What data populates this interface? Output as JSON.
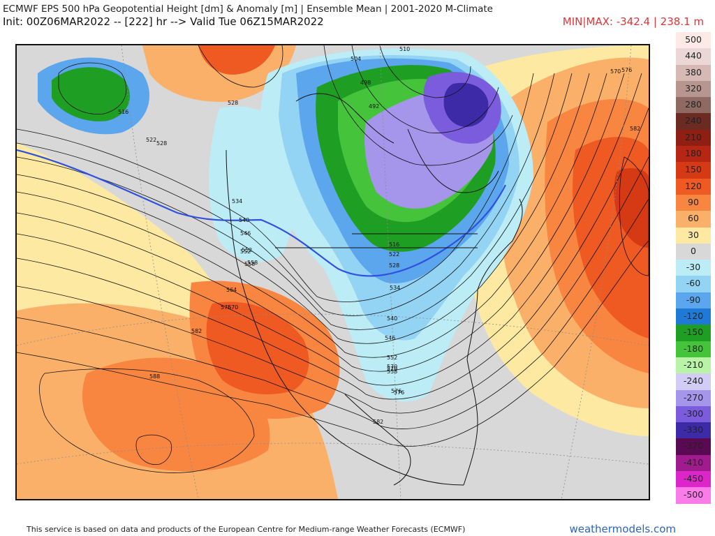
{
  "header": {
    "title_line": "ECMWF EPS 500 hPa Geopotential Height [dm] & Anomaly [m] | Ensemble Mean | 2001-2020 M-Climate",
    "init_line": "Init: 00Z06MAR2022 -- [222] hr --> Valid Tue 06Z15MAR2022",
    "minmax": "MIN|MAX: -342.4 | 238.1 m"
  },
  "legend": {
    "levels": [
      {
        "label": "500",
        "color": "#fde9e6"
      },
      {
        "label": "440",
        "color": "#ebd8d6"
      },
      {
        "label": "380",
        "color": "#d6b9b4"
      },
      {
        "label": "320",
        "color": "#b89690"
      },
      {
        "label": "280",
        "color": "#8f6a63"
      },
      {
        "label": "240",
        "color": "#6b2b22"
      },
      {
        "label": "210",
        "color": "#8e1f12"
      },
      {
        "label": "180",
        "color": "#b52714"
      },
      {
        "label": "150",
        "color": "#d63a14"
      },
      {
        "label": "120",
        "color": "#ef5a22"
      },
      {
        "label": "90",
        "color": "#f98640"
      },
      {
        "label": "60",
        "color": "#fbb06a"
      },
      {
        "label": "30",
        "color": "#fde9a2"
      },
      {
        "label": "0",
        "color": "#d8d8d8"
      },
      {
        "label": "-30",
        "color": "#bcecf5"
      },
      {
        "label": "-60",
        "color": "#93d3f3"
      },
      {
        "label": "-90",
        "color": "#5ba6ec"
      },
      {
        "label": "-120",
        "color": "#1e7ad6"
      },
      {
        "label": "-150",
        "color": "#1f9e24"
      },
      {
        "label": "-180",
        "color": "#45c33a"
      },
      {
        "label": "-210",
        "color": "#b9f3a8"
      },
      {
        "label": "-240",
        "color": "#d2cdf5"
      },
      {
        "label": "-270",
        "color": "#a596ec"
      },
      {
        "label": "-300",
        "color": "#7a5cdc"
      },
      {
        "label": "-330",
        "color": "#3d2aa6"
      },
      {
        "label": "-370",
        "color": "#5a0a52"
      },
      {
        "label": "-410",
        "color": "#a01c8e"
      },
      {
        "label": "-450",
        "color": "#dd26c9"
      },
      {
        "label": "-500",
        "color": "#f97ce8"
      }
    ]
  },
  "contour_labels": [
    "504",
    "510",
    "498",
    "492",
    "516",
    "522",
    "528",
    "534",
    "540",
    "546",
    "552",
    "558",
    "564",
    "570",
    "576",
    "582",
    "588",
    "576",
    "582",
    "528",
    "540",
    "552",
    "558",
    "570",
    "576",
    "516",
    "522",
    "528",
    "534",
    "546",
    "552",
    "558",
    "570",
    "576",
    "582",
    "570"
  ],
  "footer": {
    "attribution": "This service is based on data and products of the European Centre for Medium-range Weather Forecasts (ECMWF)",
    "brand": "weathermodels.com"
  }
}
